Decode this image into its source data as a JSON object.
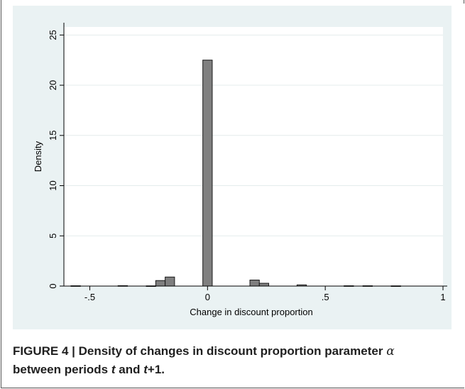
{
  "caption": {
    "label": "FIGURE 4 | Density of changes in discount proportion parameter",
    "symbol": "α",
    "line2_pre": "between periods ",
    "var_t": "t",
    "and": " and ",
    "var_t1": "t",
    "plus_one": "+1",
    "period": "."
  },
  "chart_data": {
    "type": "bar",
    "title": "",
    "xlabel": "Change in discount proportion",
    "ylabel": "Density",
    "xlim": [
      -0.61,
      1.0
    ],
    "ylim": [
      0,
      25.8
    ],
    "x_ticks": [
      -0.5,
      0,
      0.5,
      1
    ],
    "x_tick_labels": [
      "-.5",
      "0",
      ".5",
      "1"
    ],
    "y_ticks": [
      0,
      5,
      10,
      15,
      20,
      25
    ],
    "y_tick_labels": [
      "0",
      "5",
      "10",
      "15",
      "20",
      "25"
    ],
    "grid": true,
    "bin_width": 0.04,
    "bins": [
      {
        "x": -0.58,
        "density": 0.03
      },
      {
        "x": -0.38,
        "density": 0.04
      },
      {
        "x": -0.26,
        "density": 0.02
      },
      {
        "x": -0.22,
        "density": 0.55
      },
      {
        "x": -0.18,
        "density": 0.9
      },
      {
        "x": -0.02,
        "density": 22.5
      },
      {
        "x": 0.18,
        "density": 0.6
      },
      {
        "x": 0.22,
        "density": 0.28
      },
      {
        "x": 0.38,
        "density": 0.12
      },
      {
        "x": 0.58,
        "density": 0.03
      },
      {
        "x": 0.66,
        "density": 0.03
      },
      {
        "x": 0.78,
        "density": 0.02
      }
    ],
    "colors": {
      "bar_fill": "#7f7f7f",
      "bar_stroke": "#1a1a1a",
      "grid": "#ffffff",
      "axis": "#000000"
    }
  }
}
